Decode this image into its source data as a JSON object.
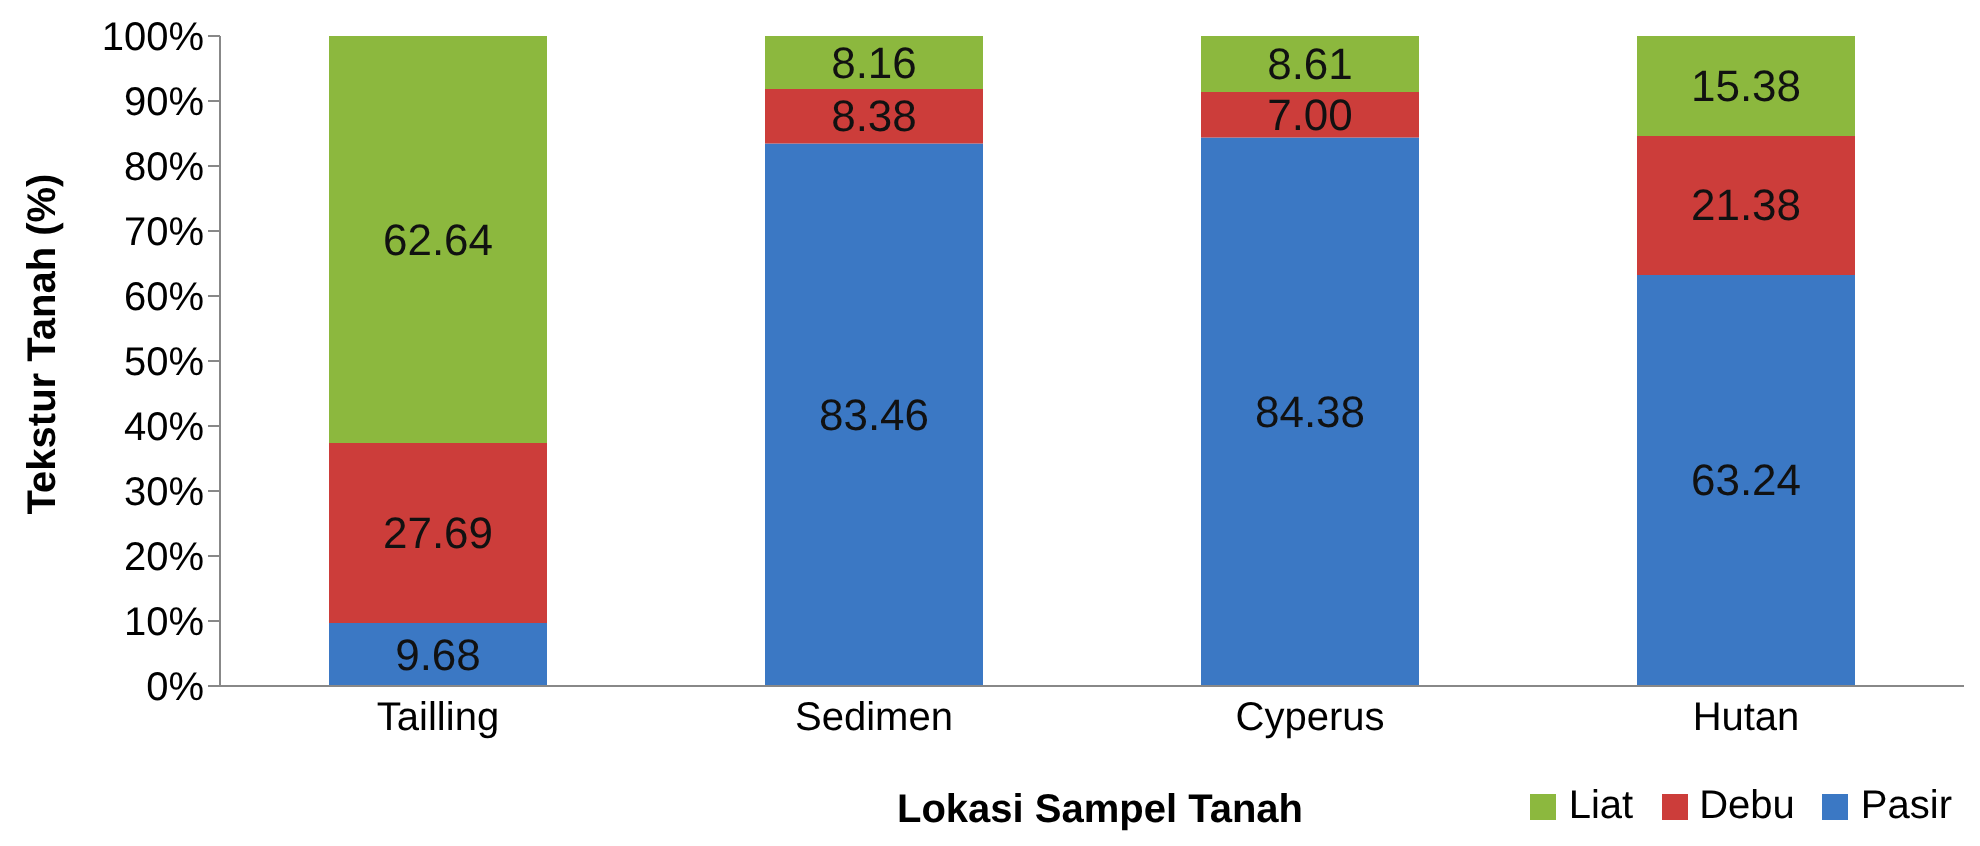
{
  "chart_data": {
    "type": "bar",
    "stacked": true,
    "xlabel": "Lokasi Sampel Tanah",
    "ylabel": "Tekstur Tanah (%)",
    "categories": [
      "Tailling",
      "Sedimen",
      "Cyperus",
      "Hutan"
    ],
    "series": [
      {
        "name": "Pasir",
        "color": "#3b78c4",
        "values": [
          9.68,
          83.46,
          84.38,
          63.24
        ],
        "value_labels": [
          "9.68",
          "83.46",
          "84.38",
          "63.24"
        ]
      },
      {
        "name": "Debu",
        "color": "#cc3d3a",
        "values": [
          27.69,
          8.38,
          7.0,
          21.38
        ],
        "value_labels": [
          "27.69",
          "8.38",
          "7.00",
          "21.38"
        ]
      },
      {
        "name": "Liat",
        "color": "#8cb83e",
        "values": [
          62.64,
          8.16,
          8.61,
          15.38
        ],
        "value_labels": [
          "62.64",
          "8.16",
          "8.61",
          "15.38"
        ]
      }
    ],
    "ylim": [
      0,
      100
    ],
    "yticks": [
      {
        "value": 0,
        "label": "0%"
      },
      {
        "value": 10,
        "label": "10%"
      },
      {
        "value": 20,
        "label": "20%"
      },
      {
        "value": 30,
        "label": "30%"
      },
      {
        "value": 40,
        "label": "40%"
      },
      {
        "value": 50,
        "label": "50%"
      },
      {
        "value": 60,
        "label": "60%"
      },
      {
        "value": 70,
        "label": "70%"
      },
      {
        "value": 80,
        "label": "80%"
      },
      {
        "value": 90,
        "label": "90%"
      },
      {
        "value": 100,
        "label": "100%"
      }
    ],
    "legend": "bottom right",
    "grid": false
  }
}
